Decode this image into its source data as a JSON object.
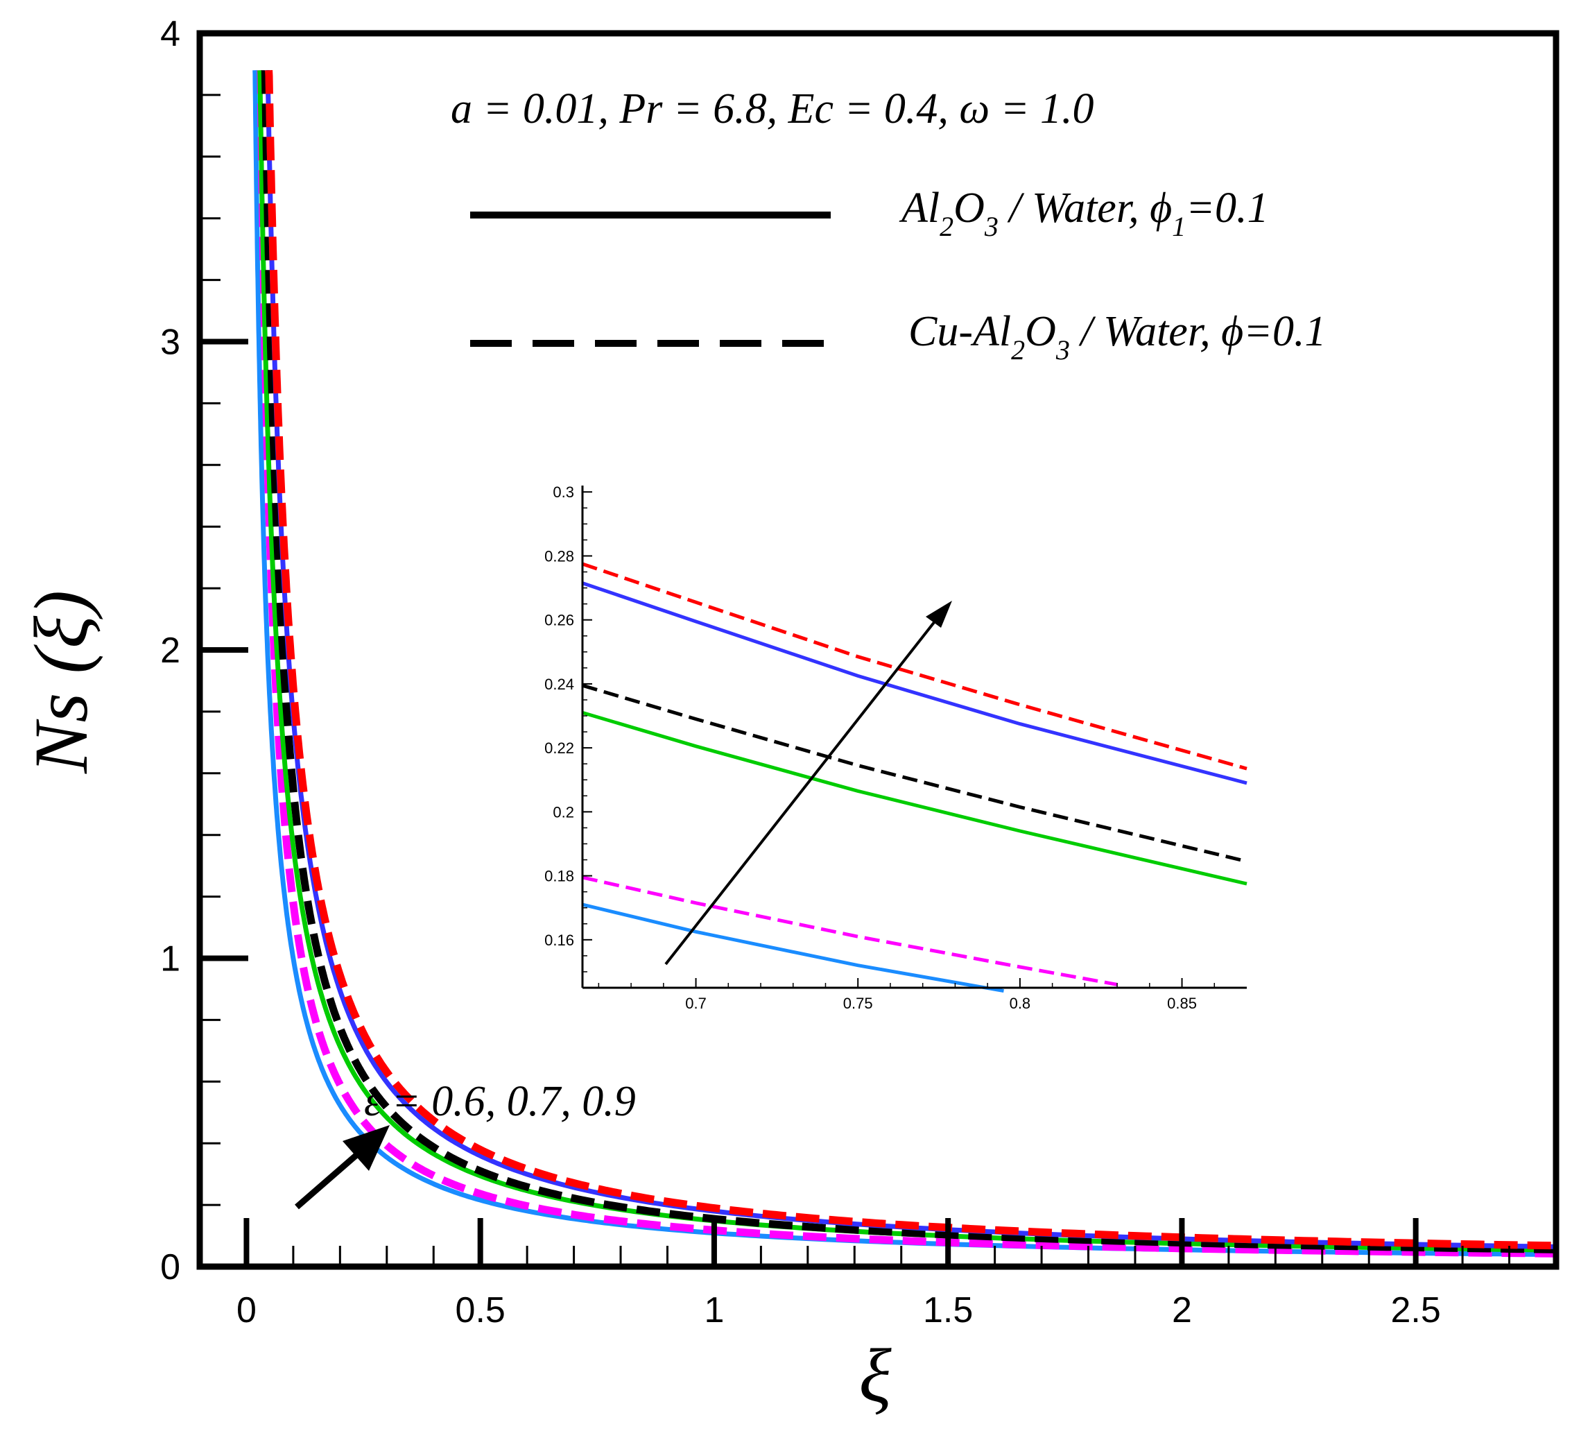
{
  "chart_data": {
    "type": "line",
    "xlabel": "ξ",
    "ylabel": "Ns (ξ)",
    "xlim": [
      -0.1,
      2.8
    ],
    "ylim": [
      0,
      4
    ],
    "xticks": [
      0,
      0.5,
      1,
      1.5,
      2,
      2.5
    ],
    "xtick_labels": [
      "0",
      "0.5",
      "1",
      "1.5",
      "2",
      "2.5"
    ],
    "yticks": [
      0,
      1,
      2,
      3,
      4
    ],
    "ytick_labels": [
      "0",
      "1",
      "2",
      "3",
      "4"
    ],
    "params_text": "a = 0.01, Pr = 6.8, Ec = 0.4, ω = 1.0",
    "legend": {
      "solid": {
        "pre": "Al",
        "s1": "2",
        "mid": "O",
        "s2": "3",
        "post": " / Water,  ϕ",
        "s3": "1",
        "tail": "=0.1"
      },
      "dashed": {
        "pre": "Cu-Al",
        "s1": "2",
        "mid": "O",
        "s2": "3",
        "post": " / Water, ϕ=0.1"
      }
    },
    "annotation": "ε  = 0.6, 0.7, 0.9",
    "series": [
      {
        "name": "Al2O3/Water ε=0.6",
        "style": "solid",
        "color": "#1a8cff",
        "A": 0.11,
        "x0": 0.01
      },
      {
        "name": "Cu-Al2O3/Water ε=0.6",
        "style": "dashed",
        "color": "#ff00ff",
        "A": 0.118,
        "x0": 0.0
      },
      {
        "name": "Al2O3/Water ε=0.7",
        "style": "solid",
        "color": "#00cc00",
        "A": 0.15,
        "x0": 0.01
      },
      {
        "name": "Cu-Al2O3/Water ε=0.7",
        "style": "dashed",
        "color": "#000000",
        "A": 0.155,
        "x0": 0.0
      },
      {
        "name": "Al2O3/Water ε=0.9",
        "style": "solid",
        "color": "#3333ff",
        "A": 0.18,
        "x0": 0.001
      },
      {
        "name": "Cu-Al2O3/Water ε=0.9",
        "style": "dashed",
        "color": "#ff0000",
        "A": 0.19,
        "x0": 0.001
      }
    ],
    "inset": {
      "xlim": [
        0.665,
        0.87
      ],
      "ylim": [
        0.145,
        0.302
      ],
      "xticks": [
        0.7,
        0.75,
        0.8,
        0.85
      ],
      "xtick_labels": [
        "0.7",
        "0.75",
        "0.8",
        "0.85"
      ],
      "yticks": [
        0.16,
        0.18,
        0.2,
        0.22,
        0.24,
        0.26,
        0.28,
        0.3
      ],
      "ytick_labels": [
        "0.16",
        "0.18",
        "0.2",
        "0.22",
        "0.24",
        "0.26",
        "0.28",
        "0.3"
      ],
      "series": [
        {
          "name": "Al2O3/Water ε=0.6",
          "style": "solid",
          "color": "#1a8cff",
          "points": [
            [
              0.665,
              0.171
            ],
            [
              0.7,
              0.1625
            ],
            [
              0.75,
              0.152
            ],
            [
              0.795,
              0.144
            ]
          ]
        },
        {
          "name": "Cu-Al2O3/Water ε=0.6",
          "style": "dashed",
          "color": "#ff00ff",
          "points": [
            [
              0.665,
              0.1795
            ],
            [
              0.7,
              0.1715
            ],
            [
              0.75,
              0.161
            ],
            [
              0.8,
              0.1515
            ],
            [
              0.83,
              0.146
            ]
          ]
        },
        {
          "name": "Al2O3/Water ε=0.7",
          "style": "solid",
          "color": "#00cc00",
          "points": [
            [
              0.665,
              0.231
            ],
            [
              0.7,
              0.2205
            ],
            [
              0.75,
              0.2065
            ],
            [
              0.8,
              0.194
            ],
            [
              0.87,
              0.1775
            ]
          ]
        },
        {
          "name": "Cu-Al2O3/Water ε=0.7",
          "style": "dashed",
          "color": "#000000",
          "points": [
            [
              0.665,
              0.2395
            ],
            [
              0.7,
              0.229
            ],
            [
              0.75,
              0.2145
            ],
            [
              0.8,
              0.2015
            ],
            [
              0.87,
              0.1845
            ]
          ]
        },
        {
          "name": "Al2O3/Water ε=0.9",
          "style": "solid",
          "color": "#3333ff",
          "points": [
            [
              0.665,
              0.2715
            ],
            [
              0.7,
              0.2595
            ],
            [
              0.75,
              0.2425
            ],
            [
              0.8,
              0.2275
            ],
            [
              0.87,
              0.209
            ]
          ]
        },
        {
          "name": "Cu-Al2O3/Water ε=0.9",
          "style": "dashed",
          "color": "#ff0000",
          "points": [
            [
              0.665,
              0.2775
            ],
            [
              0.7,
              0.2655
            ],
            [
              0.75,
              0.2485
            ],
            [
              0.8,
              0.2335
            ],
            [
              0.87,
              0.2135
            ]
          ]
        }
      ]
    }
  }
}
